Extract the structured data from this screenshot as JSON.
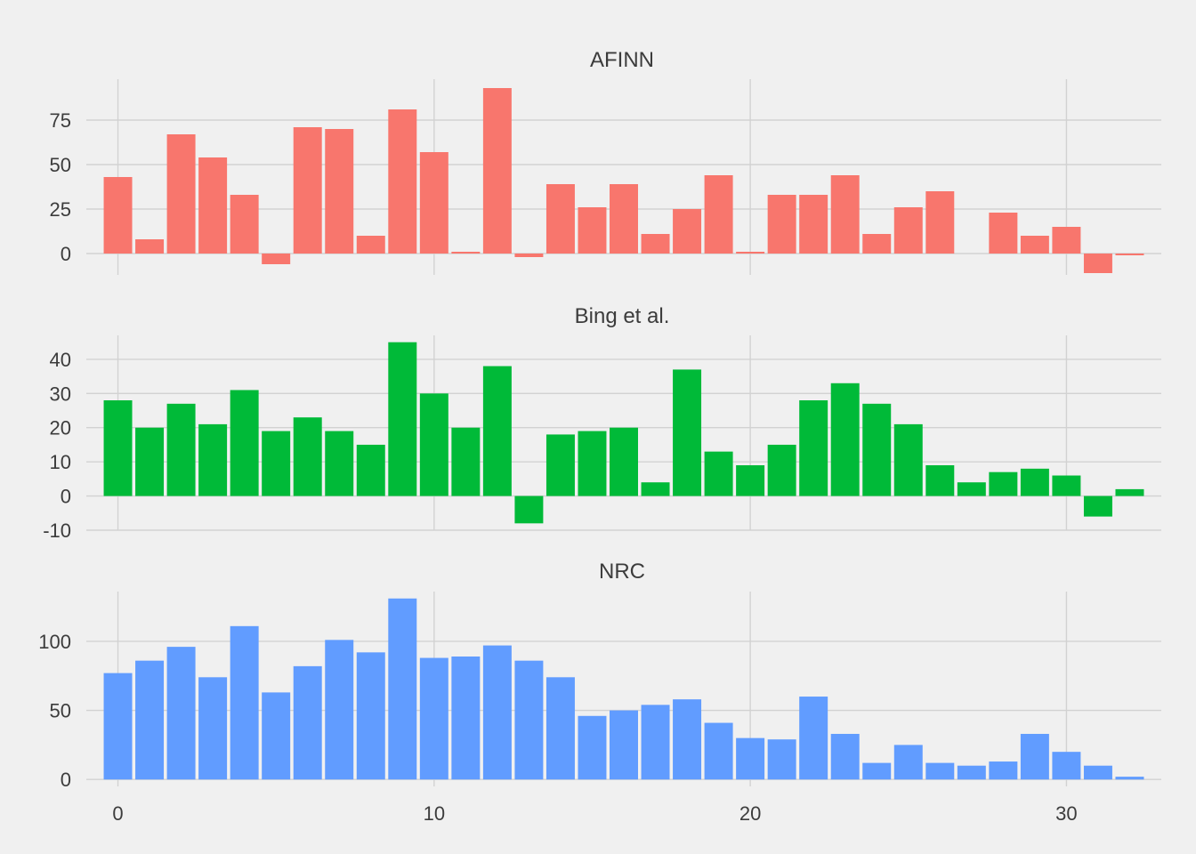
{
  "chart_data": {
    "type": "bar",
    "layout": "faceted-vertical",
    "shared_x_axis": true,
    "grid": true,
    "xlim": [
      -1,
      33
    ],
    "x_ticks": [
      0,
      10,
      20,
      30
    ],
    "colors": {
      "AFINN": "#F8766D",
      "Bing et al.": "#00BA38",
      "NRC": "#619CFF"
    },
    "background": "#F0F0F0",
    "x": [
      0,
      1,
      2,
      3,
      4,
      5,
      6,
      7,
      8,
      9,
      10,
      11,
      12,
      13,
      14,
      15,
      16,
      17,
      18,
      19,
      20,
      21,
      22,
      23,
      24,
      25,
      26,
      27,
      28,
      29,
      30,
      31,
      32
    ],
    "series": [
      {
        "name": "AFINN",
        "ylim": [
          -12,
          98
        ],
        "y_ticks": [
          0,
          25,
          50,
          75
        ],
        "values": [
          43,
          8,
          67,
          54,
          33,
          -6,
          71,
          70,
          10,
          81,
          57,
          1,
          93,
          -2,
          39,
          26,
          39,
          11,
          25,
          44,
          1,
          33,
          33,
          44,
          11,
          26,
          35,
          0,
          23,
          10,
          15,
          -11,
          -1
        ]
      },
      {
        "name": "Bing et al.",
        "ylim": [
          -10,
          47
        ],
        "y_ticks": [
          -10,
          0,
          10,
          20,
          30,
          40
        ],
        "values": [
          28,
          20,
          27,
          21,
          31,
          19,
          23,
          19,
          15,
          45,
          30,
          20,
          38,
          -8,
          18,
          19,
          20,
          4,
          37,
          13,
          9,
          15,
          28,
          33,
          27,
          21,
          9,
          4,
          7,
          8,
          6,
          -6,
          2
        ]
      },
      {
        "name": "NRC",
        "ylim": [
          -5,
          136
        ],
        "y_ticks": [
          0,
          50,
          100
        ],
        "values": [
          77,
          86,
          96,
          74,
          111,
          63,
          82,
          101,
          92,
          131,
          88,
          89,
          97,
          86,
          74,
          46,
          50,
          54,
          58,
          41,
          30,
          29,
          60,
          33,
          12,
          25,
          12,
          10,
          13,
          33,
          20,
          10,
          2
        ]
      }
    ]
  }
}
